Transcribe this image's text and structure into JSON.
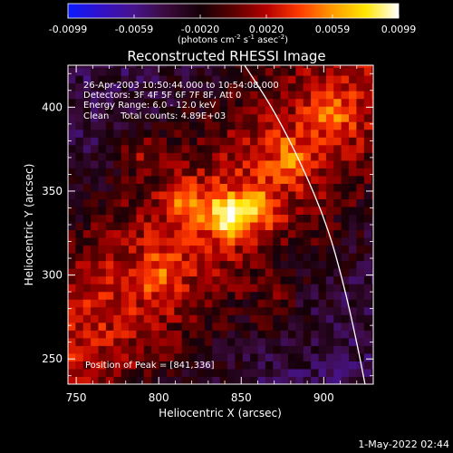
{
  "colorbar": {
    "ticks": [
      "-0.0099",
      "-0.0059",
      "-0.0020",
      "0.0020",
      "0.0059",
      "0.0099"
    ],
    "unit_parts": {
      "pre": "(photons cm",
      "sup1": "-2",
      "mid": " s",
      "sup2": "-1",
      "mid2": " asec",
      "sup3": "-2",
      "post": ")"
    },
    "gradient": [
      "#0a1cff",
      "#3210c8",
      "#46148c",
      "#3a0a3a",
      "#140008",
      "#5a0000",
      "#b40000",
      "#ff3a00",
      "#ff9a00",
      "#ffe600",
      "#ffffff"
    ]
  },
  "info": {
    "line1": "26-Apr-2003 10:50:44.000 to 10:54:08.000",
    "line2": "Detectors: 3F 4F 5F 6F 7F 8F, Att 0",
    "line3": "Energy Range: 6.0 - 12.0 keV",
    "line4": "Clean    Total counts: 4.89E+03",
    "peak": "Position of Peak = [841,336]"
  },
  "footer": {
    "date": "1-May-2022 02:44"
  },
  "chart_data": {
    "type": "heatmap",
    "title": "Reconstructed RHESSI Image",
    "xlabel": "Heliocentric X (arcsec)",
    "ylabel": "Heliocentric Y (arcsec)",
    "xlim": [
      745,
      930
    ],
    "ylim": [
      235,
      425
    ],
    "xticks": [
      750,
      800,
      850,
      900
    ],
    "yticks": [
      250,
      300,
      350,
      400
    ],
    "colorbar_range": [
      -0.0099,
      0.0099
    ],
    "peak": [
      841,
      336
    ],
    "limb_curve": [
      [
        852,
        425
      ],
      [
        870,
        398
      ],
      [
        887,
        365
      ],
      [
        902,
        330
      ],
      [
        912,
        295
      ],
      [
        920,
        260
      ],
      [
        925,
        235
      ]
    ],
    "emission_ridge": {
      "from": [
        775,
        285
      ],
      "to": [
        905,
        395
      ],
      "width_arcsec": 40
    },
    "sources": [
      {
        "x": 841,
        "y": 336,
        "peak": 0.0099
      },
      {
        "x": 860,
        "y": 340,
        "peak": 0.0055
      },
      {
        "x": 815,
        "y": 345,
        "peak": 0.0045
      },
      {
        "x": 790,
        "y": 375,
        "peak": 0.004
      },
      {
        "x": 880,
        "y": 370,
        "peak": 0.0045
      },
      {
        "x": 905,
        "y": 395,
        "peak": 0.0035
      },
      {
        "x": 800,
        "y": 300,
        "peak": 0.0035
      },
      {
        "x": 870,
        "y": 280,
        "peak": 0.0035
      }
    ],
    "background_level": -0.004
  }
}
